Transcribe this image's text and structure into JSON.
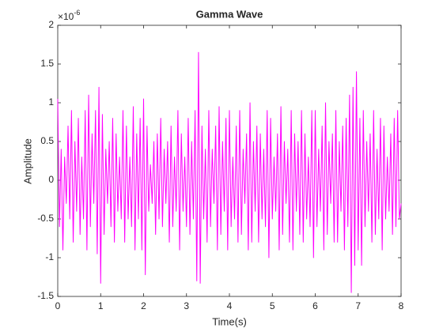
{
  "chart_data": {
    "type": "line",
    "title": "Gamma Wave",
    "x_label": "Time(s)",
    "y_label": "Amplitude",
    "y_exponent_base": "×10",
    "y_exponent_power": "-6",
    "xlim": [
      0,
      8
    ],
    "xticks": [
      0,
      1,
      2,
      3,
      4,
      5,
      6,
      7,
      8
    ],
    "ylim": [
      -1.5,
      2
    ],
    "yticks": [
      -1.5,
      -1,
      -0.5,
      0,
      0.5,
      1,
      1.5,
      2
    ],
    "x": [
      0,
      0.04,
      0.08,
      0.12,
      0.16,
      0.2,
      0.24,
      0.28,
      0.32,
      0.36,
      0.4,
      0.44,
      0.48,
      0.52,
      0.56,
      0.6,
      0.64,
      0.68,
      0.72,
      0.76,
      0.8,
      0.84,
      0.88,
      0.92,
      0.96,
      1,
      1.04,
      1.08,
      1.12,
      1.16,
      1.2,
      1.24,
      1.28,
      1.32,
      1.36,
      1.4,
      1.44,
      1.48,
      1.52,
      1.56,
      1.6,
      1.64,
      1.68,
      1.72,
      1.76,
      1.8,
      1.84,
      1.88,
      1.92,
      1.96,
      2,
      2.04,
      2.08,
      2.12,
      2.16,
      2.2,
      2.24,
      2.28,
      2.32,
      2.36,
      2.4,
      2.44,
      2.48,
      2.52,
      2.56,
      2.6,
      2.64,
      2.68,
      2.72,
      2.76,
      2.8,
      2.84,
      2.88,
      2.92,
      2.96,
      3,
      3.04,
      3.08,
      3.12,
      3.16,
      3.2,
      3.24,
      3.28,
      3.32,
      3.36,
      3.4,
      3.44,
      3.48,
      3.52,
      3.56,
      3.6,
      3.64,
      3.68,
      3.72,
      3.76,
      3.8,
      3.84,
      3.88,
      3.92,
      3.96,
      4,
      4.04,
      4.08,
      4.12,
      4.16,
      4.2,
      4.24,
      4.28,
      4.32,
      4.36,
      4.4,
      4.44,
      4.48,
      4.52,
      4.56,
      4.6,
      4.64,
      4.68,
      4.72,
      4.76,
      4.8,
      4.84,
      4.88,
      4.92,
      4.96,
      5,
      5.04,
      5.08,
      5.12,
      5.16,
      5.2,
      5.24,
      5.28,
      5.32,
      5.36,
      5.4,
      5.44,
      5.48,
      5.52,
      5.56,
      5.6,
      5.64,
      5.68,
      5.72,
      5.76,
      5.8,
      5.84,
      5.88,
      5.92,
      5.96,
      6,
      6.04,
      6.08,
      6.12,
      6.16,
      6.2,
      6.24,
      6.28,
      6.32,
      6.36,
      6.4,
      6.44,
      6.48,
      6.52,
      6.56,
      6.6,
      6.64,
      6.68,
      6.72,
      6.76,
      6.8,
      6.84,
      6.88,
      6.92,
      6.96,
      7,
      7.04,
      7.08,
      7.12,
      7.16,
      7.2,
      7.24,
      7.28,
      7.32,
      7.36,
      7.4,
      7.44,
      7.48,
      7.52,
      7.56,
      7.6,
      7.64,
      7.68,
      7.72,
      7.76,
      7.8,
      7.84,
      7.88,
      7.92,
      7.96,
      8
    ],
    "series": [
      {
        "name": "Gamma",
        "color": "#ff00ff",
        "values": [
          1.05,
          -0.6,
          0.4,
          -0.9,
          0.3,
          -0.3,
          0.7,
          -0.5,
          0.9,
          -0.8,
          0.5,
          -0.4,
          0.8,
          -0.7,
          0.3,
          -0.5,
          0.9,
          -0.9,
          1.1,
          -0.6,
          0.6,
          -0.3,
          0.9,
          -0.95,
          1.2,
          -1.33,
          0.85,
          -0.7,
          0.4,
          -0.3,
          0.5,
          -0.6,
          0.8,
          -0.8,
          0.6,
          -0.4,
          0.3,
          -0.5,
          0.9,
          -0.8,
          0.7,
          -0.5,
          0.3,
          -0.6,
          0.95,
          -0.9,
          0.6,
          -0.5,
          0.8,
          -0.9,
          1.05,
          -1.22,
          0.7,
          -0.4,
          0.2,
          -0.3,
          0.5,
          -0.7,
          0.6,
          -0.5,
          0.8,
          -0.6,
          0.4,
          -0.3,
          0.5,
          -0.8,
          0.7,
          -0.6,
          0.3,
          -0.4,
          0.9,
          -0.9,
          0.6,
          -0.4,
          0.3,
          -0.6,
          0.8,
          -0.7,
          0.5,
          -0.5,
          0.9,
          -1.3,
          1.65,
          -1.33,
          0.7,
          -0.5,
          0.4,
          -0.8,
          0.9,
          -0.6,
          0.4,
          -0.3,
          0.7,
          -0.9,
          0.95,
          -0.7,
          0.5,
          -0.4,
          0.8,
          -0.9,
          0.9,
          -0.6,
          0.3,
          -0.5,
          0.7,
          -0.8,
          0.9,
          -0.7,
          0.4,
          -0.3,
          0.6,
          -0.9,
          1.0,
          -0.8,
          0.5,
          -0.4,
          0.7,
          -0.8,
          0.6,
          -0.5,
          0.4,
          -0.6,
          0.9,
          -1.0,
          0.8,
          -0.5,
          0.3,
          -0.4,
          0.6,
          -0.9,
          0.95,
          -0.7,
          0.5,
          -0.3,
          0.4,
          -0.8,
          0.9,
          -0.9,
          0.6,
          -0.4,
          0.5,
          -0.7,
          0.9,
          -0.8,
          0.6,
          -0.5,
          0.3,
          -0.6,
          0.9,
          -1.0,
          0.9,
          -0.6,
          0.4,
          -0.4,
          0.7,
          -0.9,
          1.0,
          -0.7,
          0.5,
          -0.3,
          0.6,
          -0.8,
          0.9,
          -0.8,
          0.5,
          -0.4,
          0.7,
          -0.9,
          0.8,
          -0.6,
          1.1,
          -1.45,
          1.2,
          -1.1,
          1.4,
          -0.9,
          0.8,
          -1.1,
          0.9,
          -0.6,
          0.5,
          -0.4,
          0.6,
          -0.8,
          0.9,
          -0.7,
          0.4,
          -0.5,
          0.8,
          -0.9,
          0.7,
          -0.5,
          0.3,
          -0.4,
          0.6,
          -0.7,
          0.8,
          -0.6,
          0.9,
          -0.5,
          -0.3
        ]
      }
    ]
  }
}
